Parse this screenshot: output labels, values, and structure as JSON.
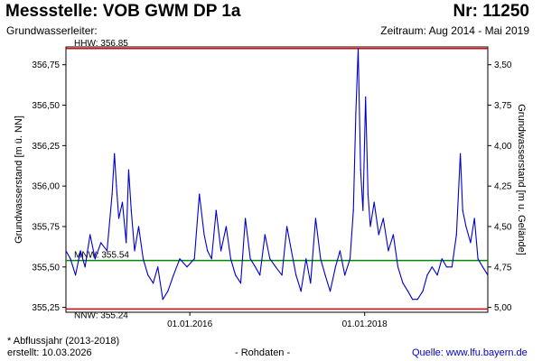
{
  "header": {
    "title": "Messstelle: VOB GWM DP 1a",
    "number": "Nr: 11250",
    "aquifer": "Grundwasserleiter:",
    "period": "Zeitraum: Aug 2014 - Mai 2019"
  },
  "footer": {
    "footnote": "* Abflussjahr (2013-2018)",
    "created": "erstellt:  10.03.2026",
    "raw": "- Rohdaten -",
    "source": "Quelle:  www.lfu.bayern.de"
  },
  "colors": {
    "series": "#0000cc",
    "hhw": "#dd0000",
    "nnw": "#dd0000",
    "mnw": "#008800",
    "axis": "#000000"
  },
  "chart_data": {
    "type": "line",
    "ylabel": "Grundwasserstand [m ü. NN]",
    "y2label": "Grundwasserstand [m u. Gelände]",
    "ylim": [
      355.22,
      356.86
    ],
    "yticks": [
      {
        "value": 356.75,
        "label": "356,75"
      },
      {
        "value": 356.5,
        "label": "356,50"
      },
      {
        "value": 356.25,
        "label": "356,25"
      },
      {
        "value": 356.0,
        "label": "356,00"
      },
      {
        "value": 355.75,
        "label": "355,75"
      },
      {
        "value": 355.5,
        "label": "355,50"
      },
      {
        "value": 355.25,
        "label": "355,25"
      }
    ],
    "y2ticks": [
      {
        "value": 3.5,
        "label": "3,50"
      },
      {
        "value": 3.75,
        "label": "3,75"
      },
      {
        "value": 4.0,
        "label": "4,00"
      },
      {
        "value": 4.25,
        "label": "4,25"
      },
      {
        "value": 4.5,
        "label": "4,50"
      },
      {
        "value": 4.75,
        "label": "4,75"
      },
      {
        "value": 5.0,
        "label": "5,00"
      }
    ],
    "y2_relation": "ground level 360.25 m ü. NN minus groundwater level",
    "xlim": [
      "2014-08-01",
      "2019-05-31"
    ],
    "xticks": [
      {
        "value": "2016-01-01",
        "label": "01.01.2016"
      },
      {
        "value": "2018-01-01",
        "label": "01.01.2018"
      }
    ],
    "reference_lines": [
      {
        "key": "hhw",
        "label": "HHW: 356.85",
        "value": 356.85
      },
      {
        "key": "mnw",
        "label": "MNW: 355.54",
        "value": 355.54
      },
      {
        "key": "nnw",
        "label": "NNW: 355.24",
        "value": 355.24
      }
    ],
    "series": [
      {
        "x": [
          "2014-08-01",
          "2014-08-20",
          "2014-09-10",
          "2014-10-01",
          "2014-10-20",
          "2014-11-10",
          "2014-12-01",
          "2014-12-25",
          "2015-01-20",
          "2015-02-10",
          "2015-02-20",
          "2015-02-28",
          "2015-03-10",
          "2015-03-25",
          "2015-04-10",
          "2015-04-20",
          "2015-05-01",
          "2015-05-15",
          "2015-06-01",
          "2015-06-20",
          "2015-07-10",
          "2015-08-01",
          "2015-08-20",
          "2015-09-10",
          "2015-10-01",
          "2015-10-25",
          "2015-11-20",
          "2015-12-20",
          "2016-01-20",
          "2016-02-10",
          "2016-03-01",
          "2016-03-15",
          "2016-04-01",
          "2016-04-20",
          "2016-05-10",
          "2016-06-01",
          "2016-06-20",
          "2016-07-10",
          "2016-08-01",
          "2016-08-20",
          "2016-09-10",
          "2016-10-01",
          "2016-10-20",
          "2016-11-10",
          "2016-12-01",
          "2016-12-25",
          "2017-01-20",
          "2017-02-10",
          "2017-03-01",
          "2017-03-20",
          "2017-04-10",
          "2017-05-01",
          "2017-05-20",
          "2017-06-10",
          "2017-07-01",
          "2017-07-20",
          "2017-08-10",
          "2017-09-01",
          "2017-09-20",
          "2017-10-10",
          "2017-11-01",
          "2017-11-15",
          "2017-11-25",
          "2017-12-05",
          "2017-12-15",
          "2017-12-25",
          "2018-01-05",
          "2018-01-15",
          "2018-01-25",
          "2018-02-10",
          "2018-03-01",
          "2018-03-20",
          "2018-04-10",
          "2018-05-01",
          "2018-05-20",
          "2018-06-10",
          "2018-07-01",
          "2018-07-20",
          "2018-08-10",
          "2018-09-01",
          "2018-09-20",
          "2018-10-10",
          "2018-11-01",
          "2018-11-20",
          "2018-12-10",
          "2019-01-01",
          "2019-01-20",
          "2019-02-05",
          "2019-02-15",
          "2019-03-01",
          "2019-03-20",
          "2019-04-05",
          "2019-04-20",
          "2019-05-10",
          "2019-05-31"
        ],
        "values": [
          355.6,
          355.55,
          355.45,
          355.6,
          355.5,
          355.7,
          355.55,
          355.65,
          355.6,
          355.95,
          356.2,
          356.0,
          355.8,
          355.9,
          355.65,
          356.1,
          355.85,
          355.6,
          355.75,
          355.55,
          355.45,
          355.4,
          355.5,
          355.3,
          355.35,
          355.45,
          355.55,
          355.5,
          355.55,
          355.95,
          355.7,
          355.6,
          355.55,
          355.85,
          355.6,
          355.75,
          355.55,
          355.45,
          355.4,
          355.8,
          355.55,
          355.5,
          355.45,
          355.7,
          355.55,
          355.5,
          355.45,
          355.75,
          355.6,
          355.45,
          355.35,
          355.55,
          355.4,
          355.8,
          355.55,
          355.45,
          355.35,
          355.5,
          355.6,
          355.45,
          355.55,
          355.85,
          356.45,
          356.85,
          356.1,
          355.85,
          356.55,
          355.95,
          355.75,
          355.9,
          355.7,
          355.8,
          355.6,
          355.7,
          355.5,
          355.4,
          355.35,
          355.3,
          355.3,
          355.35,
          355.45,
          355.5,
          355.45,
          355.55,
          355.5,
          355.5,
          355.7,
          356.2,
          355.85,
          355.75,
          355.65,
          355.8,
          355.55,
          355.5,
          355.45
        ]
      }
    ]
  }
}
